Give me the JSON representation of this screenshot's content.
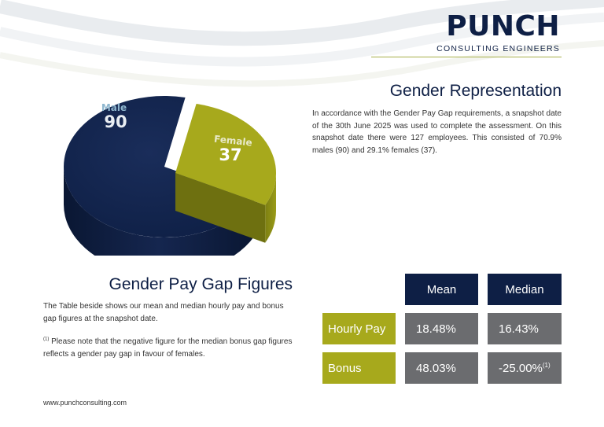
{
  "brand": {
    "name": "PUNCH",
    "subtitle": "CONSULTING ENGINEERS",
    "navy": "#0e1f45",
    "olive": "#a7a91c",
    "grey": "#6b6c6f"
  },
  "representation": {
    "heading": "Gender Representation",
    "body": "In accordance with the Gender Pay Gap requirements, a snapshot date of the 30th June 2025 was used to complete the assessment. On this snapshot date there were 127 employees. This consisted of 70.9% males (90) and 29.1% females (37)."
  },
  "chart_data": {
    "type": "pie",
    "categories": [
      "Male",
      "Female"
    ],
    "values": [
      90,
      37
    ],
    "labels": {
      "male": "Male",
      "female": "Female"
    },
    "value_labels": {
      "male": "90",
      "female": "37"
    },
    "colors": [
      "#0e1f45",
      "#a7a91c"
    ]
  },
  "pay_gap": {
    "heading": "Gender Pay Gap Figures",
    "intro": "The Table beside shows our mean and median hourly pay and bonus gap figures at the snapshot date.",
    "note_marker": "(1)",
    "note": " Please note that the negative figure for the median bonus gap figures reflects a gender pay gap in favour of females."
  },
  "table": {
    "col_mean": "Mean",
    "col_median": "Median",
    "row_hourly": {
      "label": "Hourly Pay",
      "mean": "18.48%",
      "median": "16.43%"
    },
    "row_bonus": {
      "label": "Bonus",
      "mean": "48.03%",
      "median": "-25.00%",
      "median_note": "(1)"
    }
  },
  "footer": {
    "url": "www.punchconsulting.com"
  }
}
